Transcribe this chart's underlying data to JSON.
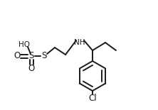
{
  "bg_color": "#ffffff",
  "line_color": "#1a1a1a",
  "line_width": 1.4,
  "font_size": 7.5,
  "figsize": [
    2.22,
    1.55
  ],
  "dpi": 100,
  "xlim": [
    0,
    222
  ],
  "ylim": [
    0,
    155
  ]
}
